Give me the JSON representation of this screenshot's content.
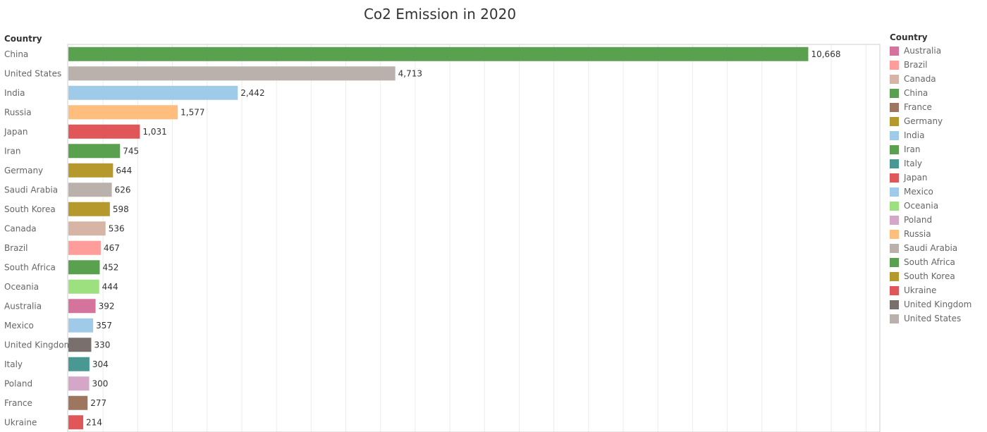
{
  "chart_data": {
    "type": "bar",
    "orientation": "horizontal",
    "title": "Co2 Emission in 2020",
    "row_header": "Country",
    "categories": [
      "China",
      "United States",
      "India",
      "Russia",
      "Japan",
      "Iran",
      "Germany",
      "Saudi Arabia",
      "South Korea",
      "Canada",
      "Brazil",
      "South Africa",
      "Oceania",
      "Australia",
      "Mexico",
      "United Kingdom",
      "Italy",
      "Poland",
      "France",
      "Ukraine"
    ],
    "values": [
      10668,
      4713,
      2442,
      1577,
      1031,
      745,
      644,
      626,
      598,
      536,
      467,
      452,
      444,
      392,
      357,
      330,
      304,
      300,
      277,
      214
    ],
    "value_labels": [
      "10,668",
      "4,713",
      "2,442",
      "1,577",
      "1,031",
      "745",
      "644",
      "626",
      "598",
      "536",
      "467",
      "452",
      "444",
      "392",
      "357",
      "330",
      "304",
      "300",
      "277",
      "214"
    ],
    "xlim": [
      0,
      11700
    ],
    "grid": "vertical",
    "legend_position": "right"
  },
  "legend": {
    "title": "Country",
    "items": [
      {
        "label": "Australia",
        "color": "#d4739b"
      },
      {
        "label": "Brazil",
        "color": "#ff9d9a"
      },
      {
        "label": "Canada",
        "color": "#d7b5a6"
      },
      {
        "label": "China",
        "color": "#59a14f"
      },
      {
        "label": "France",
        "color": "#9d7660"
      },
      {
        "label": "Germany",
        "color": "#b6992d"
      },
      {
        "label": "India",
        "color": "#a0cbe8"
      },
      {
        "label": "Iran",
        "color": "#59a14f"
      },
      {
        "label": "Italy",
        "color": "#499894"
      },
      {
        "label": "Japan",
        "color": "#e15759"
      },
      {
        "label": "Mexico",
        "color": "#a0cbe8"
      },
      {
        "label": "Oceania",
        "color": "#9ce080"
      },
      {
        "label": "Poland",
        "color": "#d4a6c8"
      },
      {
        "label": "Russia",
        "color": "#ffbe7d"
      },
      {
        "label": "Saudi Arabia",
        "color": "#bab0ac"
      },
      {
        "label": "South Africa",
        "color": "#59a14f"
      },
      {
        "label": "South Korea",
        "color": "#b6992d"
      },
      {
        "label": "Ukraine",
        "color": "#e15759"
      },
      {
        "label": "United Kingdom",
        "color": "#79706e"
      },
      {
        "label": "United States",
        "color": "#bab0ac"
      }
    ]
  }
}
